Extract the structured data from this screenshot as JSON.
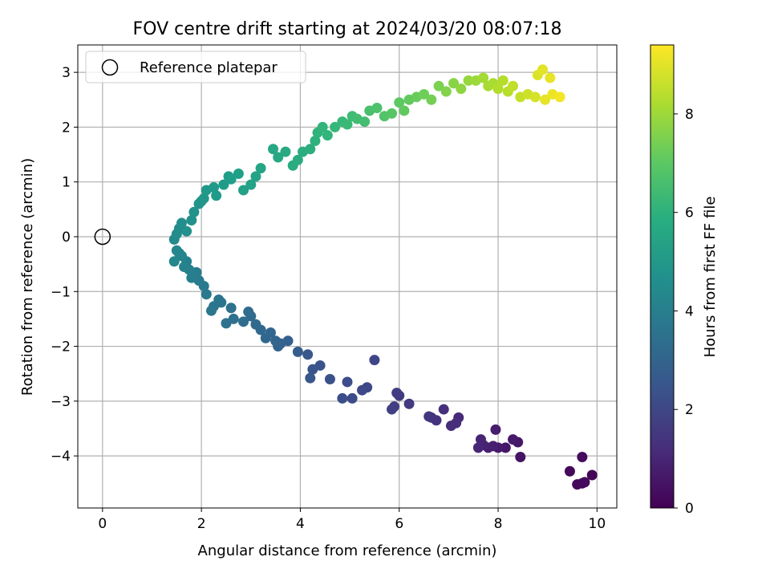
{
  "chart_data": {
    "type": "scatter",
    "title": "FOV centre drift starting at 2024/03/20 08:07:18",
    "xlabel": "Angular distance from reference (arcmin)",
    "ylabel": "Rotation from reference (arcmin)",
    "xlim": [
      -0.5,
      10.4
    ],
    "ylim": [
      -4.95,
      3.5
    ],
    "xticks": [
      0,
      2,
      4,
      6,
      8,
      10
    ],
    "yticks": [
      -4,
      -3,
      -2,
      -1,
      0,
      1,
      2,
      3
    ],
    "grid": true,
    "legend": {
      "placement": "top-left",
      "entries": [
        "Reference platepar"
      ]
    },
    "reference_point": {
      "x": 0,
      "y": 0,
      "label": "Reference platepar"
    },
    "colorbar": {
      "label": "Hours from first FF file",
      "colormap": "viridis",
      "range": [
        0,
        9.4
      ],
      "ticks": [
        0,
        2,
        4,
        6,
        8
      ]
    },
    "series": [
      {
        "x": [
          9.7,
          9.9,
          9.45,
          9.6,
          9.75,
          9.7,
          8.45,
          8.4,
          8.15,
          8.3,
          8.0,
          7.95,
          7.9,
          7.8,
          7.7,
          7.65,
          7.6,
          7.2,
          7.15,
          7.05,
          6.9,
          6.75,
          6.65,
          6.6,
          6.2,
          6.0,
          5.95,
          5.9,
          5.85,
          5.5,
          5.35,
          5.25,
          5.05,
          4.95,
          4.85,
          4.6,
          4.4,
          4.25,
          4.2,
          4.15,
          3.95,
          3.75,
          3.6,
          3.55,
          3.5,
          3.4,
          3.3,
          3.2,
          3.1,
          3.0,
          2.95,
          2.85,
          2.65,
          2.6,
          2.5,
          2.4,
          2.35,
          2.25,
          2.2,
          2.1,
          2.05,
          1.95,
          1.9,
          1.85,
          1.8,
          1.75,
          1.7,
          1.65,
          1.6,
          1.55,
          1.5,
          1.45,
          1.45,
          1.5,
          1.55,
          1.6,
          1.7,
          1.8,
          1.85,
          1.95,
          2.0,
          2.05,
          2.1,
          2.25,
          2.3,
          2.45,
          2.55,
          2.6,
          2.75,
          2.85,
          3.0,
          3.1,
          3.2,
          3.45,
          3.55,
          3.7,
          3.85,
          3.95,
          4.05,
          4.2,
          4.3,
          4.35,
          4.45,
          4.55,
          4.7,
          4.85,
          4.95,
          5.05,
          5.15,
          5.3,
          5.4,
          5.55,
          5.7,
          5.85,
          6.0,
          6.1,
          6.2,
          6.35,
          6.5,
          6.65,
          6.8,
          6.95,
          7.1,
          7.25,
          7.4,
          7.55,
          7.7,
          7.8,
          7.9,
          8.0,
          8.1,
          8.2,
          8.3,
          8.45,
          8.6,
          8.75,
          8.8,
          8.9,
          8.95,
          9.05,
          9.1,
          9.25
        ],
        "y": [
          -4.5,
          -4.35,
          -4.28,
          -4.52,
          -4.48,
          -4.02,
          -4.02,
          -3.75,
          -3.85,
          -3.7,
          -3.85,
          -3.52,
          -3.82,
          -3.85,
          -3.8,
          -3.7,
          -3.85,
          -3.3,
          -3.4,
          -3.45,
          -3.15,
          -3.35,
          -3.3,
          -3.28,
          -3.05,
          -2.9,
          -2.85,
          -3.1,
          -3.15,
          -2.25,
          -2.75,
          -2.8,
          -2.95,
          -2.65,
          -2.95,
          -2.6,
          -2.35,
          -2.42,
          -2.58,
          -2.15,
          -2.1,
          -1.9,
          -1.95,
          -2.0,
          -1.9,
          -1.75,
          -1.85,
          -1.7,
          -1.6,
          -1.45,
          -1.37,
          -1.55,
          -1.5,
          -1.3,
          -1.58,
          -1.2,
          -1.15,
          -1.27,
          -1.35,
          -1.05,
          -0.9,
          -0.8,
          -0.65,
          -0.7,
          -0.75,
          -0.6,
          -0.45,
          -0.55,
          -0.35,
          -0.3,
          -0.25,
          -0.45,
          -0.05,
          0.05,
          0.15,
          0.25,
          0.1,
          0.3,
          0.45,
          0.6,
          0.65,
          0.7,
          0.85,
          0.9,
          0.75,
          0.95,
          1.1,
          1.05,
          1.15,
          0.85,
          0.95,
          1.1,
          1.25,
          1.6,
          1.45,
          1.55,
          1.3,
          1.4,
          1.55,
          1.6,
          1.75,
          1.9,
          2.0,
          1.85,
          2.0,
          2.1,
          2.05,
          2.2,
          2.15,
          2.1,
          2.3,
          2.35,
          2.2,
          2.25,
          2.45,
          2.3,
          2.5,
          2.55,
          2.6,
          2.5,
          2.75,
          2.65,
          2.8,
          2.7,
          2.85,
          2.85,
          2.9,
          2.75,
          2.8,
          2.7,
          2.85,
          2.65,
          2.75,
          2.55,
          2.6,
          2.55,
          2.95,
          3.05,
          2.5,
          2.9,
          2.6,
          2.55
        ],
        "hours": [
          0.05,
          0.1,
          0.15,
          0.2,
          0.25,
          0.3,
          0.5,
          0.55,
          0.6,
          0.65,
          0.7,
          0.75,
          0.8,
          0.85,
          0.9,
          0.95,
          1.0,
          1.15,
          1.2,
          1.25,
          1.3,
          1.35,
          1.4,
          1.45,
          1.6,
          1.65,
          1.7,
          1.75,
          1.8,
          2.0,
          2.05,
          2.1,
          2.15,
          2.2,
          2.25,
          2.35,
          2.45,
          2.5,
          2.55,
          2.6,
          2.75,
          2.85,
          2.9,
          2.95,
          3.0,
          3.05,
          3.1,
          3.15,
          3.2,
          3.25,
          3.3,
          3.35,
          3.45,
          3.5,
          3.55,
          3.6,
          3.65,
          3.7,
          3.75,
          3.8,
          3.85,
          3.9,
          3.95,
          4.0,
          4.05,
          4.1,
          4.15,
          4.2,
          4.25,
          4.3,
          4.35,
          4.4,
          4.5,
          4.55,
          4.6,
          4.65,
          4.7,
          4.75,
          4.8,
          4.85,
          4.9,
          4.95,
          5.0,
          5.05,
          5.1,
          5.15,
          5.2,
          5.25,
          5.3,
          5.35,
          5.4,
          5.45,
          5.5,
          5.6,
          5.65,
          5.7,
          5.75,
          5.8,
          5.85,
          5.9,
          6.0,
          6.05,
          6.1,
          6.15,
          6.25,
          6.3,
          6.35,
          6.45,
          6.5,
          6.55,
          6.65,
          6.7,
          6.8,
          6.9,
          7.0,
          7.05,
          7.1,
          7.2,
          7.3,
          7.4,
          7.5,
          7.6,
          7.7,
          7.8,
          7.9,
          8.0,
          8.1,
          8.15,
          8.2,
          8.3,
          8.35,
          8.4,
          8.5,
          8.6,
          8.7,
          8.8,
          8.9,
          9.0,
          9.05,
          9.1,
          9.15,
          9.25
        ]
      }
    ]
  }
}
